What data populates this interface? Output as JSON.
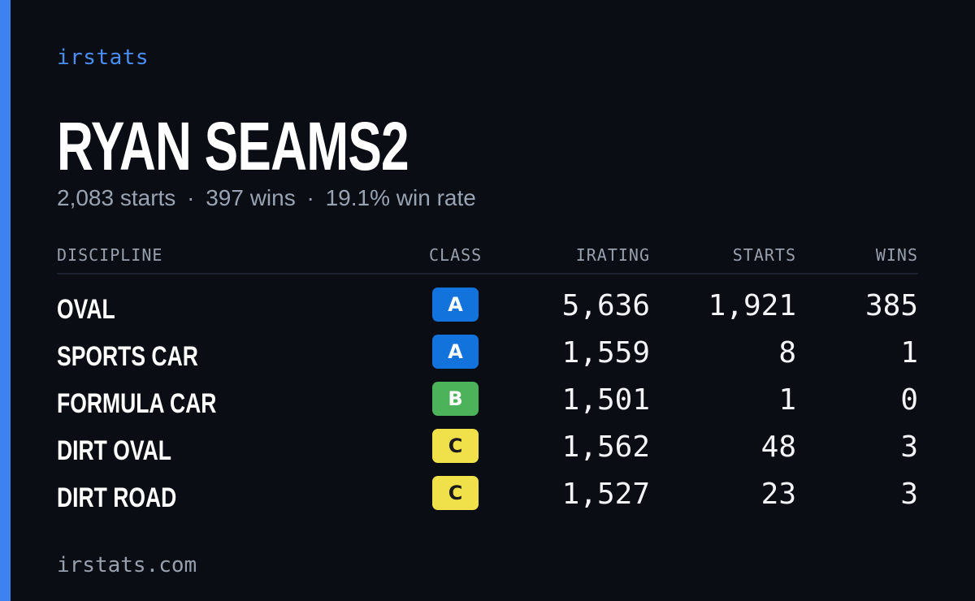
{
  "brand": "irstats",
  "player": {
    "name": "RYAN SEAMS2"
  },
  "summary": {
    "starts": "2,083 starts",
    "wins": "397 wins",
    "win_rate": "19.1% win rate",
    "separator": "·"
  },
  "table": {
    "headers": {
      "discipline": "DISCIPLINE",
      "class": "CLASS",
      "irating": "IRATING",
      "starts": "STARTS",
      "wins": "WINS"
    },
    "rows": [
      {
        "discipline": "OVAL",
        "class": "A",
        "irating": "5,636",
        "starts": "1,921",
        "wins": "385"
      },
      {
        "discipline": "SPORTS CAR",
        "class": "A",
        "irating": "1,559",
        "starts": "8",
        "wins": "1"
      },
      {
        "discipline": "FORMULA CAR",
        "class": "B",
        "irating": "1,501",
        "starts": "1",
        "wins": "0"
      },
      {
        "discipline": "DIRT OVAL",
        "class": "C",
        "irating": "1,562",
        "starts": "48",
        "wins": "3"
      },
      {
        "discipline": "DIRT ROAD",
        "class": "C",
        "irating": "1,527",
        "starts": "23",
        "wins": "3"
      }
    ]
  },
  "footer": {
    "url": "irstats.com"
  },
  "colors": {
    "background": "#0a0d14",
    "accent": "#3d82f0",
    "class_A": "#1273dc",
    "class_B": "#4cb35b",
    "class_C": "#f0e14a"
  }
}
